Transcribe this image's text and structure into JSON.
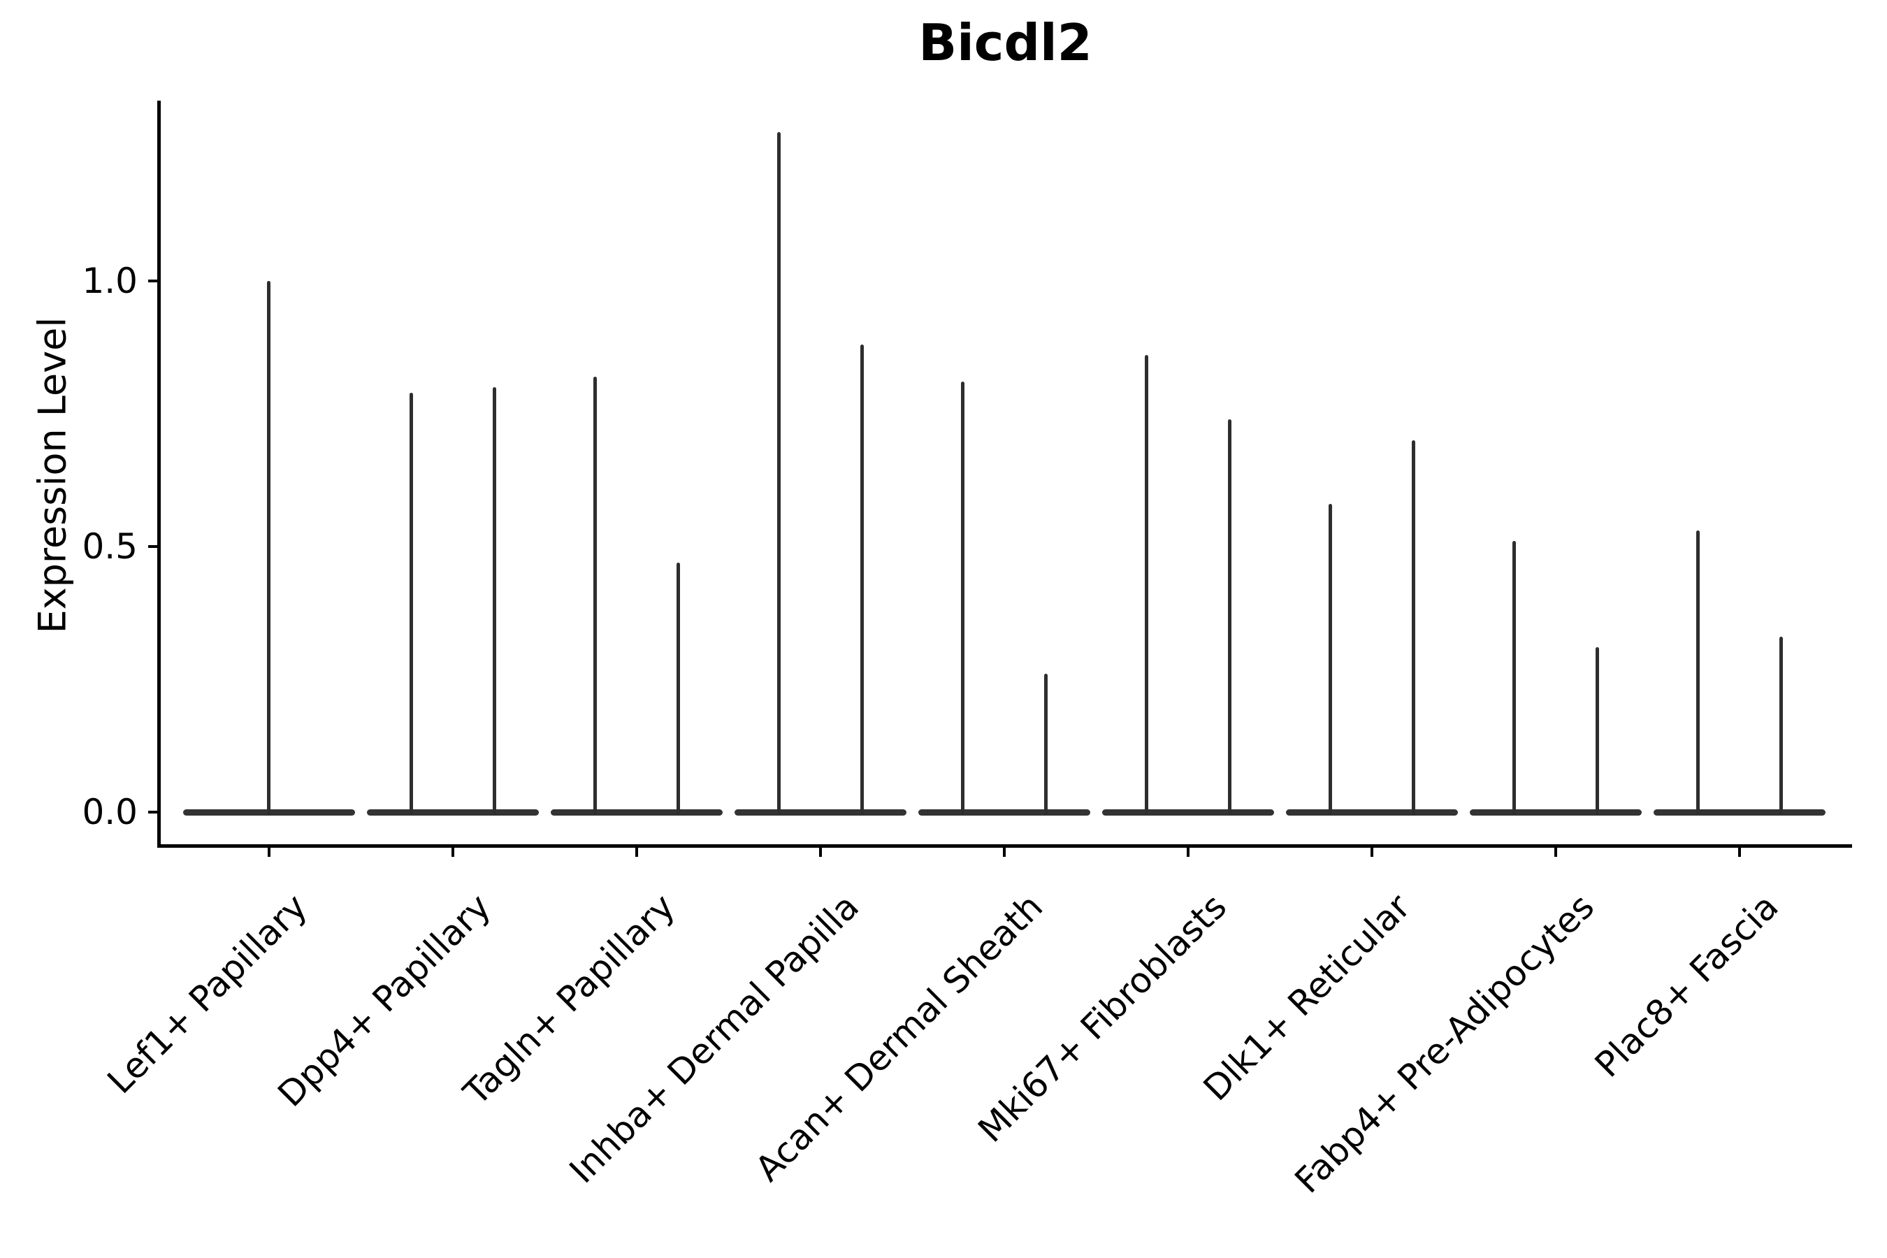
{
  "title": "Bicdl2",
  "chart_data": {
    "type": "violin",
    "title": "Bicdl2",
    "xlabel": "",
    "ylabel": "Expression Level",
    "ylim": [
      -0.07,
      1.34
    ],
    "yticks": [
      0.0,
      0.5,
      1.0
    ],
    "ytick_labels": [
      "0.0",
      "0.5",
      "1.0"
    ],
    "grid": false,
    "legend": false,
    "description": "Violin plot of Bicdl2 expression per fibroblast cell type; expression is near zero for most cells so each violin collapses to a wide flat base at 0 with a thin spike reaching the maximum expression value. Categories 2-9 each show a pair of violins; category 1 shows a single centered violin.",
    "categories": [
      "Lef1+ Papillary",
      "Dpp4+ Papillary",
      "Tagln+ Papillary",
      "Inhba+ Dermal Papilla",
      "Acan+ Dermal Sheath",
      "Mki67+ Fibroblasts",
      "Dlk1+ Reticular",
      "Fabp4+ Pre-Adipocytes",
      "Plac8+ Fascia"
    ],
    "violin_baseline_value": 0.0,
    "violin_max_per_category": [
      [
        1.0
      ],
      [
        0.79,
        0.8
      ],
      [
        0.82,
        0.47
      ],
      [
        1.28,
        0.88
      ],
      [
        0.81,
        0.26
      ],
      [
        0.86,
        0.74
      ],
      [
        0.58,
        0.7
      ],
      [
        0.51,
        0.31
      ],
      [
        0.53,
        0.33
      ]
    ],
    "colors": {
      "violin": "#2e2e2e",
      "axis": "#000000",
      "text": "#000000",
      "background": "#ffffff"
    }
  }
}
